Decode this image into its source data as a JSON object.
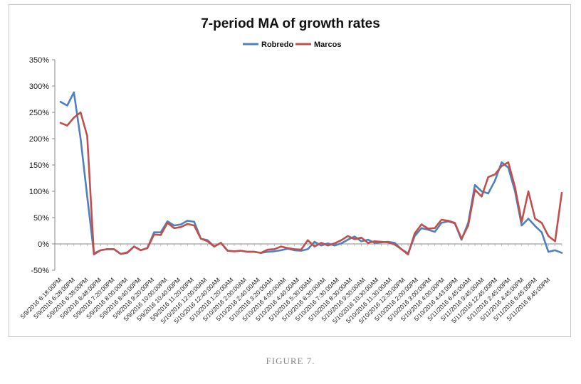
{
  "caption": "FIGURE 7.",
  "chart_data": {
    "type": "line",
    "title": "7-period MA of growth rates",
    "xlabel": "",
    "ylabel": "",
    "ylim": [
      -50,
      350
    ],
    "yticks": [
      "-50%",
      "0%",
      "50%",
      "100%",
      "150%",
      "200%",
      "250%",
      "300%",
      "350%"
    ],
    "y_tick_values": [
      -50,
      0,
      50,
      100,
      150,
      200,
      250,
      300,
      350
    ],
    "grid": false,
    "legend_position": "top-center",
    "colors": {
      "Robredo": "#4f81bd",
      "Marcos": "#c0504d",
      "axis": "#888888"
    },
    "x_tick_labels": [
      "5/9/2016 6:18:00PM",
      "5/9/2016 6:28:00PM",
      "5/9/2016 6:38:00PM",
      "5/9/2016 6:48:00PM",
      "5/9/2016 7:20:00PM",
      "5/9/2016 8:00:00PM",
      "5/9/2016 8:40:00PM",
      "5/9/2016 9:20:00PM",
      "5/9/2016 10:00:00PM",
      "5/9/2016 10:40:00PM",
      "5/9/2016 11:20:00PM",
      "5/10/2016 12:00:00AM",
      "5/10/2016 12:40:00AM",
      "5/10/2016 1:20:00AM",
      "5/10/2016 2:00:00AM",
      "5/10/2016 2:40:00AM",
      "5/10/2016 3:20:00AM",
      "5/10/2016 4:00:00AM",
      "5/10/2016 4:40:00AM",
      "5/10/2016 5:30:00AM",
      "5/10/2016 6:30:00AM",
      "5/10/2016 7:30:00AM",
      "5/10/2016 8:30:00AM",
      "5/10/2016 9:30:00AM",
      "5/10/2016 10:30:00AM",
      "5/10/2016 11:30:00AM",
      "5/10/2016 12:30:00PM",
      "5/10/2016 2:00:00PM",
      "5/10/2016 3:00:00PM",
      "5/10/2016 4:00:00PM",
      "5/10/2016 4:43:00PM",
      "5/11/2016 6:45:00AM",
      "5/11/2016 9:45:00AM",
      "5/11/2016 12:45:00PM",
      "5/11/2016 2:45:00PM",
      "5/11/2016 4:45:00PM",
      "5/11/2016 6:45:00PM",
      "5/11/2016 8:45:00PM"
    ],
    "series": [
      {
        "name": "Robredo",
        "values": [
          270,
          263,
          288,
          200,
          90,
          -18,
          -12,
          -10,
          -10,
          -19,
          -17,
          -5,
          -12,
          -8,
          22,
          22,
          43,
          35,
          37,
          44,
          42,
          10,
          7,
          -5,
          2,
          -13,
          -14,
          -13,
          -15,
          -15,
          -17,
          -15,
          -14,
          -12,
          -9,
          -12,
          -13,
          -10,
          4,
          -3,
          1,
          -3,
          1,
          8,
          14,
          5,
          8,
          2,
          3,
          4,
          2,
          -10,
          -18,
          15,
          30,
          27,
          23,
          40,
          43,
          39,
          8,
          40,
          112,
          100,
          96,
          120,
          155,
          145,
          100,
          35,
          48,
          34,
          22,
          -15,
          -12,
          -17
        ]
      },
      {
        "name": "Marcos",
        "values": [
          230,
          225,
          240,
          250,
          205,
          -20,
          -12,
          -10,
          -10,
          -19,
          -16,
          -5,
          -12,
          -8,
          18,
          17,
          40,
          30,
          32,
          38,
          35,
          10,
          5,
          -5,
          2,
          -13,
          -14,
          -13,
          -15,
          -15,
          -17,
          -11,
          -10,
          -5,
          -8,
          -10,
          -11,
          7,
          -5,
          2,
          -3,
          1,
          7,
          15,
          9,
          12,
          2,
          5,
          4,
          3,
          -1,
          -10,
          -20,
          20,
          37,
          29,
          30,
          46,
          44,
          40,
          10,
          35,
          103,
          90,
          127,
          132,
          148,
          155,
          108,
          42,
          100,
          48,
          40,
          15,
          5,
          97
        ]
      }
    ]
  }
}
